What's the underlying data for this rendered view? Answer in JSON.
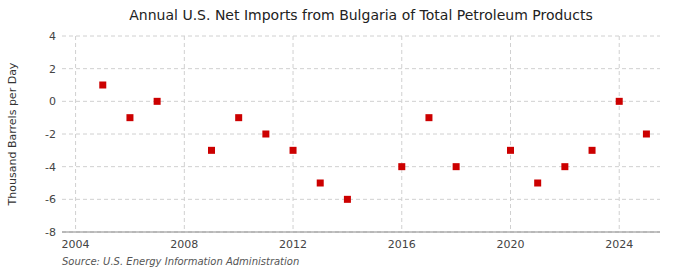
{
  "chart_data": {
    "type": "scatter",
    "title": "Annual U.S. Net Imports from Bulgaria of Total Petroleum Products",
    "ylabel": "Thousand Barrels per Day",
    "annotations": [
      "Source: U.S. Energy Information Administration"
    ],
    "x": [
      2005,
      2006,
      2007,
      2009,
      2010,
      2011,
      2012,
      2013,
      2014,
      2016,
      2017,
      2018,
      2020,
      2021,
      2022,
      2023,
      2024,
      2025
    ],
    "values": [
      1.0,
      -1.0,
      0.0,
      -3.0,
      -1.0,
      -2.0,
      -3.0,
      -5.0,
      -6.0,
      -4.0,
      -1.0,
      -4.0,
      -3.0,
      -5.0,
      -4.0,
      -3.0,
      0.0,
      -2.0
    ],
    "color": "#cc0000",
    "marker": "square",
    "xlim": [
      2003.5,
      2025.5
    ],
    "xticks": [
      2004,
      2008,
      2012,
      2016,
      2020,
      2024
    ],
    "ylim": [
      -8,
      4
    ],
    "yticks": [
      -8,
      -6,
      -4,
      -2,
      0,
      2,
      4
    ],
    "grid": true
  }
}
